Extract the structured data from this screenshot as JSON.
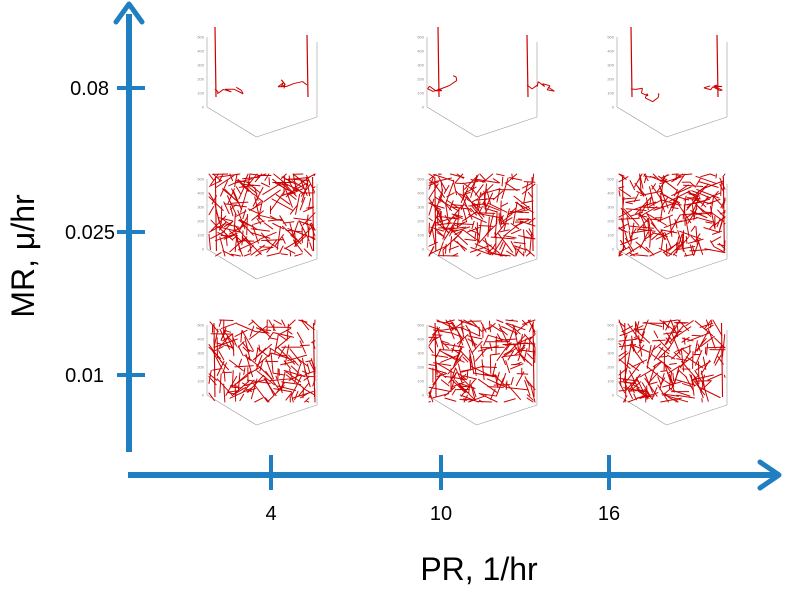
{
  "chart_data": {
    "type": "scatter",
    "title": "",
    "xlabel": "PR, 1/hr",
    "ylabel": "MR, μ/hr",
    "x_ticks": [
      "4",
      "10",
      "16"
    ],
    "y_ticks": [
      "0.08",
      "0.025",
      "0.01"
    ],
    "x_values": [
      4,
      10,
      16
    ],
    "y_values": [
      0.08,
      0.025,
      0.01
    ],
    "panel_kind": "3D network simulation (red filaments)",
    "panel_axis_ticks": [
      "0",
      "100",
      "200",
      "300",
      "400",
      "500"
    ],
    "panel_density": [
      [
        0.08,
        0.06,
        0.1
      ],
      [
        0.85,
        0.95,
        0.95
      ],
      [
        0.75,
        0.85,
        0.8
      ]
    ],
    "colors": {
      "axis": "#1f7fc1",
      "network": "#cc0000",
      "panel_frame": "#9a9a9a"
    }
  }
}
